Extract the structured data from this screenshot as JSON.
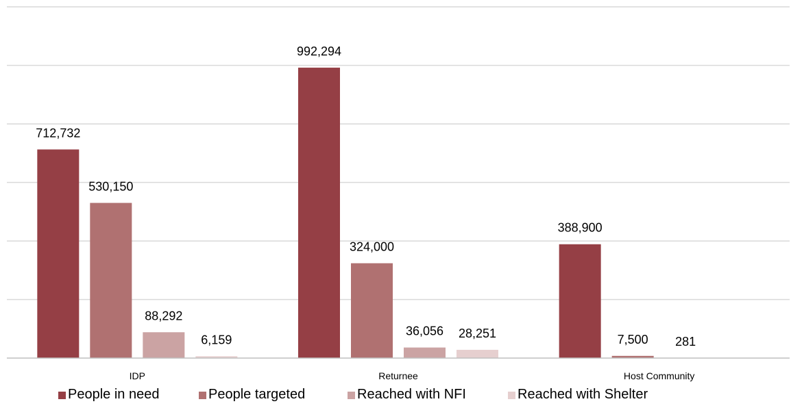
{
  "chart_data": {
    "type": "bar",
    "categories": [
      "IDP",
      "Returnee",
      "Host Community"
    ],
    "series": [
      {
        "name": "People in need",
        "color": "#953f45",
        "values": [
          712732,
          992294,
          388900
        ]
      },
      {
        "name": "People targeted",
        "color": "#b07171",
        "values": [
          530150,
          324000,
          7500
        ]
      },
      {
        "name": "Reached with NFI",
        "color": "#cba3a3",
        "values": [
          88292,
          36056,
          281
        ]
      },
      {
        "name": "Reached with Shelter",
        "color": "#e6cfcf",
        "values": [
          6159,
          28251,
          null
        ]
      }
    ],
    "value_labels": [
      [
        "712,732",
        "992,294",
        "388,900"
      ],
      [
        "530,150",
        "324,000",
        "7,500"
      ],
      [
        "88,292",
        "36,056",
        "281"
      ],
      [
        "6,159",
        "28,251",
        ""
      ]
    ],
    "ylim": [
      0,
      1200000
    ],
    "y_gridline_step": 200000,
    "grid": true,
    "legend_position": "bottom",
    "title": "",
    "xlabel": "",
    "ylabel": ""
  }
}
